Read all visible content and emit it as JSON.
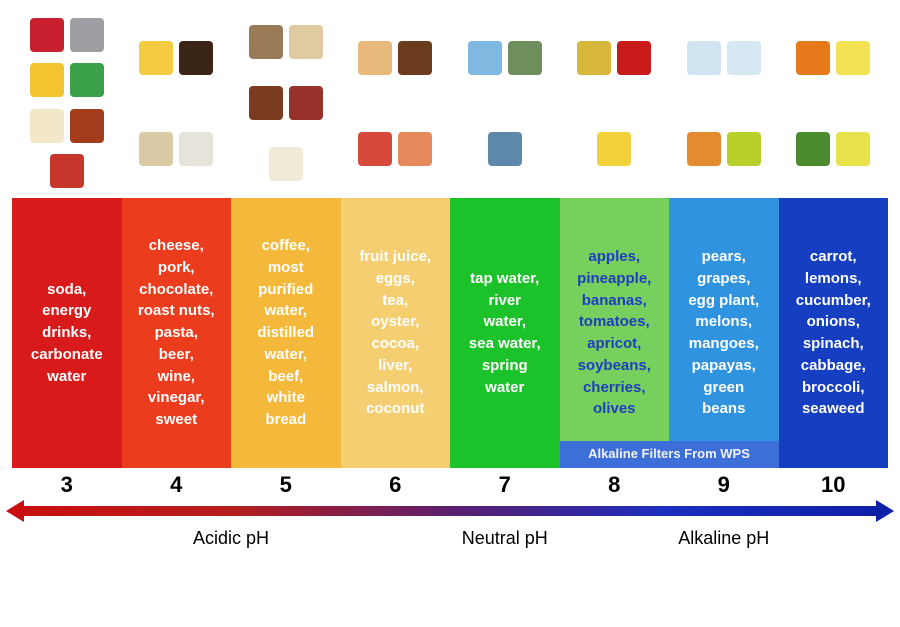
{
  "columns": [
    {
      "ph": "3",
      "color": "#d81a1a",
      "text_color": "#ffffff",
      "items": [
        "soda,",
        "energy",
        "drinks,",
        "carbonate",
        "water"
      ]
    },
    {
      "ph": "4",
      "color": "#ec3c1e",
      "text_color": "#ffffff",
      "items": [
        "cheese,",
        "pork,",
        "chocolate,",
        "roast nuts,",
        "pasta,",
        "beer,",
        "wine,",
        "vinegar,",
        "sweet"
      ]
    },
    {
      "ph": "5",
      "color": "#f4b93a",
      "text_color": "#ffffff",
      "items": [
        "coffee,",
        "most",
        "purified",
        "water,",
        "distilled",
        "water,",
        "beef,",
        "white",
        "bread"
      ]
    },
    {
      "ph": "6",
      "color": "#f6ce72",
      "text_color": "#ffffff",
      "items": [
        "fruit juice,",
        "eggs,",
        "tea,",
        "oyster,",
        "cocoa,",
        "liver,",
        "salmon,",
        "coconut"
      ]
    },
    {
      "ph": "7",
      "color": "#1cc22a",
      "text_color": "#ffffff",
      "items": [
        "tap water,",
        "river",
        "water,",
        "sea water,",
        "spring",
        "water"
      ]
    },
    {
      "ph": "8",
      "color": "#77cf5e",
      "text_color": "#1e3fc0",
      "items": [
        "apples,",
        "pineapple,",
        "bananas,",
        "tomatoes,",
        "apricot,",
        "soybeans,",
        "cherries,",
        "olives"
      ]
    },
    {
      "ph": "9",
      "color": "#2f93e0",
      "text_color": "#ffffff",
      "items": [
        "pears,",
        "grapes,",
        "egg plant,",
        "melons,",
        "mangoes,",
        "papayas,",
        "green",
        "beans"
      ]
    },
    {
      "ph": "10",
      "color": "#153ec0",
      "text_color": "#ffffff",
      "items": [
        "carrot,",
        "lemons,",
        "cucumber,",
        "onions,",
        "spinach,",
        "cabbage,",
        "broccoli,",
        "seaweed"
      ]
    }
  ],
  "overlay": {
    "text": "Alkaline  Filters From WPS",
    "bg": "#3d6fd8",
    "text_color": "#f2f2f2",
    "span_start": 5,
    "span_end": 6
  },
  "icon_colors": [
    [
      "#c9202f",
      "#9c9ea2",
      "#f4c430",
      "#3aa14a",
      "#f3e7c9",
      "#a23c1a",
      "#c7362b"
    ],
    [
      "#f5cc3f",
      "#3a2416",
      "#d9c9a4",
      "#e7e4dc"
    ],
    [
      "#9a7a57",
      "#e0caa0",
      "#7b3b1f",
      "#97322a",
      "#f1ead6"
    ],
    [
      "#e7b97a",
      "#6a3c1d",
      "#d64a3b",
      "#e5885b"
    ],
    [
      "#7fb8e0",
      "#6e8f5c",
      "#5e88a9"
    ],
    [
      "#d7b83a",
      "#c91c1a",
      "#f1d23a"
    ],
    [
      "#cfe4ee",
      "#d5e7f0",
      "#e48a2f",
      "#b9cf2b"
    ],
    [
      "#e67a1a",
      "#f3e253",
      "#4a8b2f",
      "#e7e24a"
    ]
  ],
  "axis": {
    "gradient_stops": [
      "#c90f0f",
      "#b51e1e",
      "#5b1f6e",
      "#1c2ec0",
      "#0e1fa8"
    ],
    "left_arrow_color": "#c90f0f",
    "right_arrow_color": "#0e1fa8",
    "labels": {
      "acidic": "Acidic pH",
      "neutral": "Neutral pH",
      "alkaline": "Alkaline pH"
    },
    "label_flex": [
      4,
      1,
      3
    ]
  }
}
